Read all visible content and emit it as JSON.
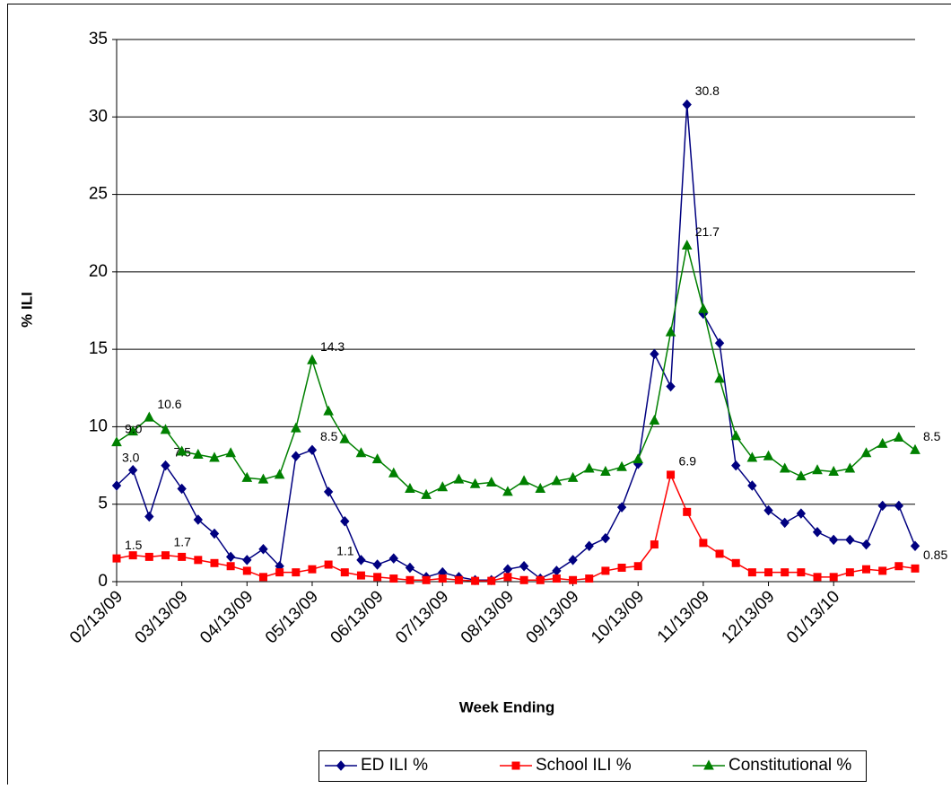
{
  "chart_data": {
    "type": "line",
    "axis_label_y": "% ILI",
    "axis_label_x": "Week Ending",
    "categories": [
      "02/13/09",
      null,
      null,
      null,
      "03/13/09",
      null,
      null,
      null,
      "04/13/09",
      null,
      null,
      null,
      "05/13/09",
      null,
      null,
      null,
      "06/13/09",
      null,
      null,
      null,
      "07/13/09",
      null,
      null,
      null,
      "08/13/09",
      null,
      null,
      null,
      "09/13/09",
      null,
      null,
      null,
      "10/13/09",
      null,
      null,
      null,
      "11/13/09",
      null,
      null,
      null,
      "12/13/09",
      null,
      null,
      null,
      "01/13/10",
      null,
      null,
      null,
      null,
      null
    ],
    "series": [
      {
        "name": "ED ILI %",
        "color": "#000080",
        "marker": "diamond",
        "values": [
          6.2,
          7.2,
          4.2,
          7.5,
          6.0,
          4.0,
          3.1,
          1.6,
          1.4,
          2.1,
          1.0,
          8.1,
          8.5,
          5.8,
          3.9,
          1.4,
          1.1,
          1.5,
          0.9,
          0.3,
          0.6,
          0.3,
          0.1,
          0.1,
          0.8,
          1.0,
          0.2,
          0.7,
          1.4,
          2.3,
          2.8,
          4.8,
          7.6,
          14.7,
          12.6,
          30.8,
          17.3,
          15.4,
          7.5,
          6.2,
          4.6,
          3.8,
          4.4,
          3.2,
          2.7,
          2.7,
          2.4,
          4.9,
          4.9,
          2.3
        ],
        "value_labels": [
          null,
          null,
          null,
          "7.5",
          null,
          null,
          null,
          null,
          null,
          null,
          null,
          null,
          "8.5",
          null,
          null,
          null,
          null,
          null,
          null,
          null,
          null,
          null,
          null,
          null,
          null,
          null,
          null,
          null,
          null,
          null,
          null,
          null,
          null,
          null,
          null,
          "30.8",
          null,
          null,
          null,
          null,
          null,
          null,
          null,
          null,
          null,
          null,
          null,
          null,
          null,
          null
        ]
      },
      {
        "name": "School ILI %",
        "color": "#ff0000",
        "marker": "square",
        "values": [
          1.5,
          1.7,
          1.6,
          1.7,
          1.6,
          1.4,
          1.2,
          1.0,
          0.7,
          0.3,
          0.6,
          0.6,
          0.8,
          1.1,
          0.6,
          0.4,
          0.3,
          0.2,
          0.1,
          0.1,
          0.2,
          0.1,
          0.05,
          0.05,
          0.3,
          0.1,
          0.1,
          0.2,
          0.1,
          0.2,
          0.7,
          0.9,
          1.0,
          2.4,
          6.9,
          4.5,
          2.5,
          1.8,
          1.2,
          0.6,
          0.6,
          0.6,
          0.6,
          0.3,
          0.3,
          0.6,
          0.8,
          0.7,
          1.0,
          0.85
        ],
        "value_labels": [
          "1.5",
          null,
          null,
          "1.7",
          null,
          null,
          null,
          null,
          null,
          null,
          null,
          null,
          null,
          "1.1",
          null,
          null,
          null,
          null,
          null,
          null,
          null,
          null,
          null,
          null,
          null,
          null,
          null,
          null,
          null,
          null,
          null,
          null,
          null,
          null,
          "6.9",
          null,
          null,
          null,
          null,
          null,
          null,
          null,
          null,
          null,
          null,
          null,
          null,
          null,
          null,
          "0.85"
        ]
      },
      {
        "name": "Constitutional %",
        "color": "#008000",
        "marker": "triangle",
        "values": [
          9.0,
          9.7,
          10.6,
          9.8,
          8.4,
          8.2,
          8.0,
          8.3,
          6.7,
          6.6,
          6.9,
          9.9,
          14.3,
          11.0,
          9.2,
          8.3,
          7.9,
          7.0,
          6.0,
          5.6,
          6.1,
          6.6,
          6.3,
          6.4,
          5.8,
          6.5,
          6.0,
          6.5,
          6.7,
          7.3,
          7.1,
          7.4,
          7.9,
          10.4,
          16.1,
          21.7,
          17.6,
          13.1,
          9.4,
          8.0,
          8.1,
          7.3,
          6.8,
          7.2,
          7.1,
          7.3,
          8.3,
          8.9,
          9.3,
          8.5
        ],
        "value_labels": [
          "9.0",
          null,
          "10.6",
          null,
          null,
          null,
          null,
          null,
          null,
          null,
          null,
          null,
          "14.3",
          null,
          null,
          null,
          null,
          null,
          null,
          null,
          null,
          null,
          null,
          null,
          null,
          null,
          null,
          null,
          null,
          null,
          null,
          null,
          null,
          null,
          null,
          "21.7",
          null,
          null,
          null,
          null,
          null,
          null,
          null,
          null,
          null,
          null,
          null,
          null,
          null,
          "8.5"
        ]
      }
    ],
    "annotations": [
      "3.0"
    ],
    "ylim": [
      0,
      35
    ],
    "yticks": [
      0,
      5,
      10,
      15,
      20,
      25,
      30,
      35
    ],
    "grid": true,
    "legend": "bottom"
  }
}
